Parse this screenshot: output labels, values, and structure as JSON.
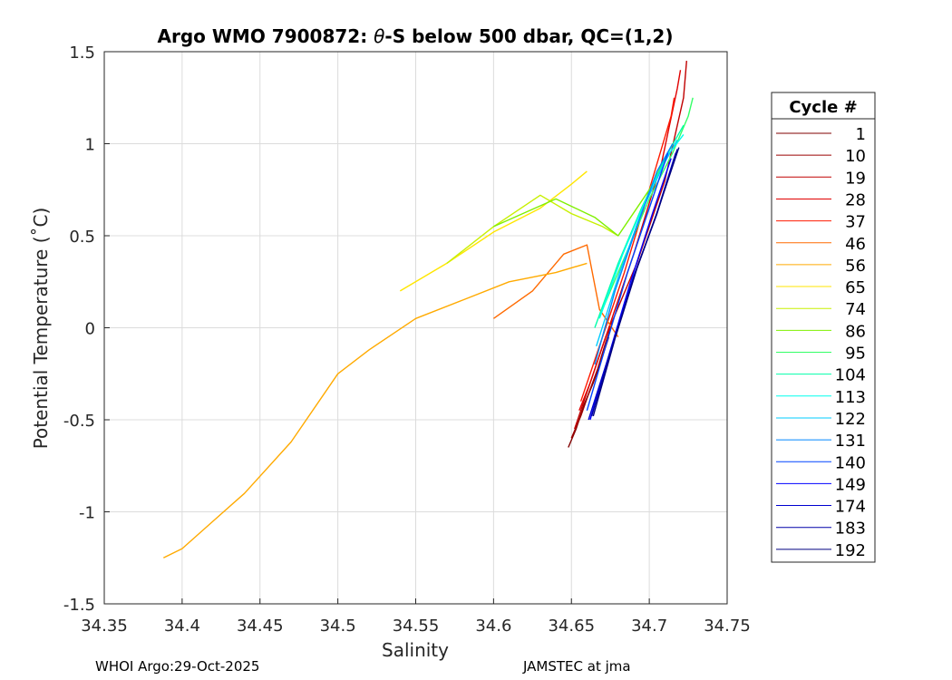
{
  "chart_data": {
    "type": "line",
    "title_prefix": "Argo WMO 7900872: ",
    "title_theta": "θ",
    "title_suffix": "-S below 500 dbar,  QC=(1,2)",
    "xlabel": "Salinity",
    "ylabel": "Potential Temperature (˚C)",
    "xlim": [
      34.35,
      34.75
    ],
    "ylim": [
      -1.5,
      1.5
    ],
    "x_ticks": [
      34.35,
      34.4,
      34.45,
      34.5,
      34.55,
      34.6,
      34.65,
      34.7,
      34.75
    ],
    "x_tick_labels": [
      "34.35",
      "34.4",
      "34.45",
      "34.5",
      "34.55",
      "34.6",
      "34.65",
      "34.7",
      "34.75"
    ],
    "y_ticks": [
      1.5,
      1,
      0.5,
      0,
      -0.5,
      -1,
      -1.5
    ],
    "y_tick_labels": [
      "1.5",
      "1",
      "0.5",
      "0",
      "-0.5",
      "-1",
      "-1.5"
    ],
    "grid": true,
    "legend_title": "Cycle #",
    "legend_position": "outside-right",
    "series": [
      {
        "name": "1",
        "color": "#800000",
        "x": [
          34.648,
          34.653,
          34.658,
          34.664,
          34.669,
          34.674
        ],
        "y": [
          -0.65,
          -0.55,
          -0.42,
          -0.3,
          -0.18,
          -0.05
        ]
      },
      {
        "name": "10",
        "color": "#9a0000",
        "x": [
          34.65,
          34.656,
          34.661,
          34.667,
          34.672,
          34.677
        ],
        "y": [
          -0.6,
          -0.48,
          -0.36,
          -0.22,
          -0.08,
          0.05
        ]
      },
      {
        "name": "19",
        "color": "#c00000",
        "x": [
          34.652,
          34.658,
          34.664,
          34.672,
          34.692,
          34.71,
          34.722,
          34.724
        ],
        "y": [
          -0.55,
          -0.4,
          -0.25,
          -0.05,
          0.35,
          0.8,
          1.25,
          1.45
        ]
      },
      {
        "name": "28",
        "color": "#e00000",
        "x": [
          34.655,
          34.662,
          34.67,
          34.69,
          34.708,
          34.718,
          34.72
        ],
        "y": [
          -0.45,
          -0.3,
          -0.1,
          0.4,
          0.9,
          1.3,
          1.4
        ]
      },
      {
        "name": "37",
        "color": "#ff1a00",
        "x": [
          34.656,
          34.664,
          34.672,
          34.684,
          34.7,
          34.714,
          34.716
        ],
        "y": [
          -0.4,
          -0.2,
          0.0,
          0.3,
          0.75,
          1.15,
          1.25
        ]
      },
      {
        "name": "46",
        "color": "#ff6a00",
        "x": [
          34.6,
          34.625,
          34.645,
          34.66,
          34.668,
          34.68
        ],
        "y": [
          0.05,
          0.2,
          0.4,
          0.45,
          0.1,
          -0.05
        ]
      },
      {
        "name": "56",
        "color": "#ffaa00",
        "x": [
          34.388,
          34.4,
          34.42,
          34.44,
          34.47,
          34.5,
          34.52,
          34.55,
          34.58,
          34.61,
          34.64,
          34.66
        ],
        "y": [
          -1.25,
          -1.2,
          -1.05,
          -0.9,
          -0.62,
          -0.25,
          -0.12,
          0.05,
          0.15,
          0.25,
          0.3,
          0.35
        ]
      },
      {
        "name": "65",
        "color": "#ffe600",
        "x": [
          34.54,
          34.57,
          34.6,
          34.63,
          34.65,
          34.66
        ],
        "y": [
          0.2,
          0.35,
          0.52,
          0.65,
          0.78,
          0.85
        ]
      },
      {
        "name": "74",
        "color": "#c8f000",
        "x": [
          34.57,
          34.6,
          34.63,
          34.65,
          34.67,
          34.68
        ],
        "y": [
          0.35,
          0.55,
          0.72,
          0.62,
          0.55,
          0.5
        ]
      },
      {
        "name": "86",
        "color": "#7ff000",
        "x": [
          34.6,
          34.64,
          34.665,
          34.68,
          34.7,
          34.715
        ],
        "y": [
          0.55,
          0.7,
          0.6,
          0.5,
          0.75,
          1.0
        ]
      },
      {
        "name": "95",
        "color": "#33ff66",
        "x": [
          34.67,
          34.685,
          34.7,
          34.715,
          34.725,
          34.728
        ],
        "y": [
          0.1,
          0.4,
          0.7,
          0.95,
          1.15,
          1.25
        ]
      },
      {
        "name": "104",
        "color": "#00ffaa",
        "x": [
          34.665,
          34.68,
          34.695,
          34.712,
          34.722
        ],
        "y": [
          0.0,
          0.35,
          0.65,
          0.95,
          1.1
        ]
      },
      {
        "name": "113",
        "color": "#00ffee",
        "x": [
          34.668,
          34.683,
          34.698,
          34.713,
          34.722
        ],
        "y": [
          0.05,
          0.4,
          0.7,
          0.95,
          1.05
        ]
      },
      {
        "name": "122",
        "color": "#00ccff",
        "x": [
          34.666,
          34.681,
          34.696,
          34.71,
          34.718
        ],
        "y": [
          -0.1,
          0.3,
          0.65,
          0.9,
          1.02
        ]
      },
      {
        "name": "131",
        "color": "#0088ff",
        "x": [
          34.665,
          34.678,
          34.692,
          34.705,
          34.715
        ],
        "y": [
          -0.2,
          0.2,
          0.55,
          0.85,
          1.0
        ]
      },
      {
        "name": "140",
        "color": "#0044ff",
        "x": [
          34.66,
          34.672,
          34.686,
          34.7,
          34.712
        ],
        "y": [
          -0.45,
          -0.1,
          0.3,
          0.65,
          0.95
        ]
      },
      {
        "name": "149",
        "color": "#0000ff",
        "x": [
          34.662,
          34.674,
          34.688,
          34.702,
          34.714
        ],
        "y": [
          -0.5,
          -0.15,
          0.25,
          0.62,
          0.92
        ]
      },
      {
        "name": "174",
        "color": "#0000d0",
        "x": [
          34.661,
          34.676,
          34.69,
          34.704,
          34.717
        ],
        "y": [
          -0.5,
          -0.1,
          0.28,
          0.6,
          0.95
        ]
      },
      {
        "name": "183",
        "color": "#0000a8",
        "x": [
          34.663,
          34.677,
          34.691,
          34.705,
          34.718
        ],
        "y": [
          -0.48,
          -0.08,
          0.3,
          0.62,
          0.97
        ]
      },
      {
        "name": "192",
        "color": "#000080",
        "x": [
          34.664,
          34.678,
          34.692,
          34.706,
          34.719
        ],
        "y": [
          -0.48,
          -0.06,
          0.32,
          0.65,
          0.98
        ]
      }
    ]
  },
  "footer": {
    "left": "WHOI Argo:29-Oct-2025",
    "right": "JAMSTEC at jma"
  }
}
